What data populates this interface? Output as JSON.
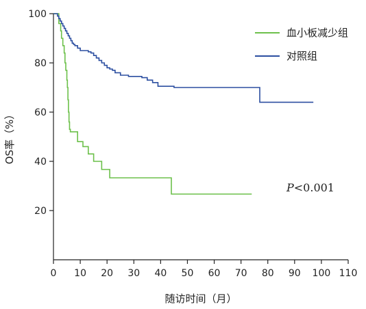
{
  "chart_data": {
    "type": "line",
    "title": "",
    "xlabel": "随访时间（月）",
    "ylabel": "OS率（%）",
    "xlim": [
      0,
      110
    ],
    "ylim": [
      0,
      100
    ],
    "x_ticks": [
      0,
      10,
      20,
      30,
      40,
      50,
      60,
      70,
      80,
      90,
      100,
      110
    ],
    "y_ticks": [
      20,
      40,
      60,
      80,
      100
    ],
    "grid": false,
    "legend_position": "top-right",
    "annotation": {
      "italic": "P",
      "text": "<0.001"
    },
    "series": [
      {
        "name": "血小板减少组",
        "color": "#6cc04a",
        "step": true,
        "x": [
          0,
          2,
          2.7,
          3,
          3.5,
          4,
          4.3,
          4.6,
          5,
          5.2,
          5.4,
          5.6,
          5.8,
          6,
          6.3,
          6.6,
          7,
          8,
          9,
          11,
          13,
          15,
          18,
          21,
          30,
          44,
          60,
          74
        ],
        "y": [
          100,
          96,
          93,
          90,
          87,
          84,
          80,
          77,
          73,
          70,
          65,
          60,
          56,
          53,
          52,
          52,
          52,
          52,
          48,
          46,
          43,
          40,
          36.7,
          33.3,
          33.3,
          26.7,
          26.7,
          26.7
        ]
      },
      {
        "name": "对照组",
        "color": "#2b4ea0",
        "step": true,
        "x": [
          0,
          1.5,
          2,
          2.5,
          3,
          3.5,
          4,
          4.5,
          5,
          5.5,
          6,
          6.5,
          7,
          7.5,
          8,
          9,
          10,
          11,
          12,
          13,
          14,
          15,
          16,
          17,
          18,
          19,
          20,
          21,
          22,
          23,
          25,
          28,
          33,
          35,
          37,
          39,
          45,
          55,
          65,
          72,
          77,
          87,
          97
        ],
        "y": [
          100,
          99,
          98,
          97,
          96,
          95,
          94,
          93,
          92,
          91,
          90,
          89,
          88,
          87.5,
          87,
          86,
          85,
          85,
          85,
          84.5,
          84,
          83,
          82,
          81,
          80,
          79,
          78,
          77.5,
          77,
          76,
          75,
          74.5,
          74,
          73,
          72,
          70.5,
          70,
          70,
          70,
          70,
          64,
          64,
          64
        ]
      }
    ]
  }
}
